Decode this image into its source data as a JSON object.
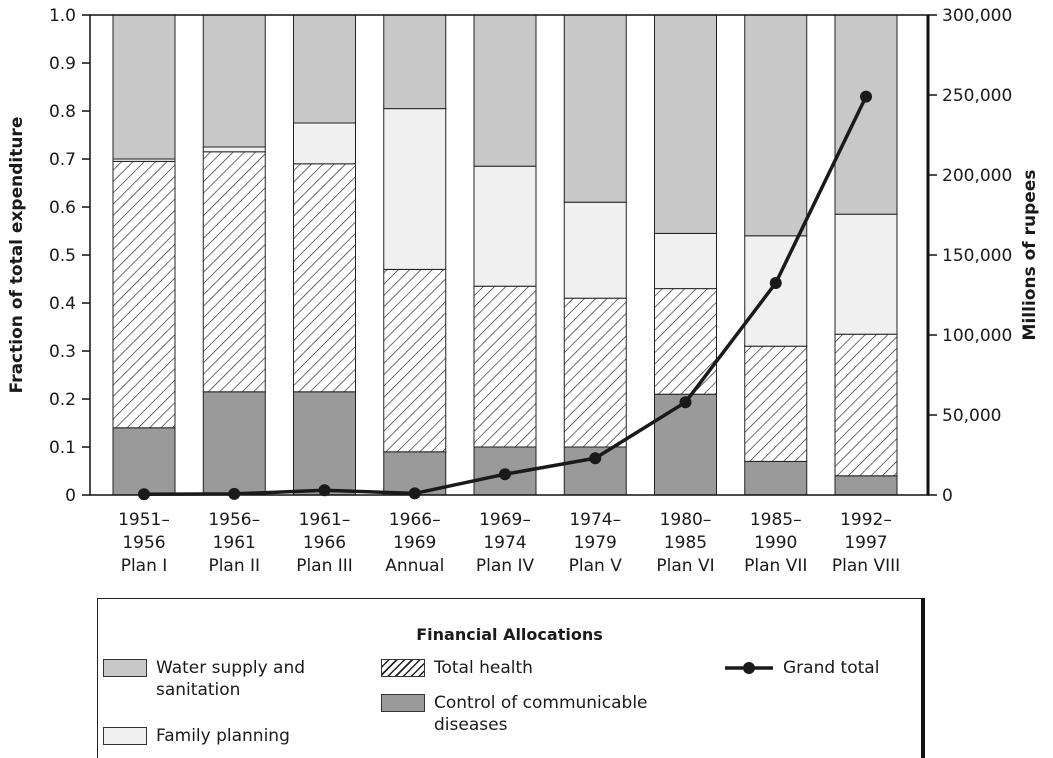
{
  "chart_data": {
    "type": "stacked-bar-line",
    "ylabel": "Fraction of total expenditure",
    "y2label": "Millions of rupees",
    "categories": [
      [
        "1951–",
        "1956",
        "Plan I"
      ],
      [
        "1956–",
        "1961",
        "Plan II"
      ],
      [
        "1961–",
        "1966",
        "Plan III"
      ],
      [
        "1966–",
        "1969",
        "Annual"
      ],
      [
        "1969–",
        "1974",
        "Plan IV"
      ],
      [
        "1974–",
        "1979",
        "Plan V"
      ],
      [
        "1980–",
        "1985",
        "Plan VI"
      ],
      [
        "1985–",
        "1990",
        "Plan VII"
      ],
      [
        "1992–",
        "1997",
        "Plan VIII"
      ]
    ],
    "ylim": [
      0,
      1
    ],
    "yticks": [
      0,
      0.1,
      0.2,
      0.3,
      0.4,
      0.5,
      0.6,
      0.7,
      0.8,
      0.9,
      {
        "value": 1,
        "label": "1.0"
      }
    ],
    "y2lim": [
      0,
      300000
    ],
    "y2ticks": [
      0,
      {
        "value": 50000,
        "label": "50,000"
      },
      {
        "value": 100000,
        "label": "100,000"
      },
      {
        "value": 150000,
        "label": "150,000"
      },
      {
        "value": 200000,
        "label": "200,000"
      },
      {
        "value": 250000,
        "label": "250,000"
      },
      {
        "value": 300000,
        "label": "300,000"
      }
    ],
    "legend_title": "Financial Allocations",
    "series": [
      {
        "name": "Control of communicable diseases",
        "color": "#9a9a9a",
        "values": [
          0.14,
          0.215,
          0.215,
          0.09,
          0.1,
          0.1,
          0.21,
          0.07,
          0.04
        ]
      },
      {
        "name": "Total health",
        "color": "#ffffff",
        "hatch": true,
        "values": [
          0.555,
          0.5,
          0.475,
          0.38,
          0.335,
          0.31,
          0.22,
          0.24,
          0.295
        ]
      },
      {
        "name": "Family planning",
        "color": "#f0f0f0",
        "values": [
          0.005,
          0.01,
          0.085,
          0.335,
          0.25,
          0.2,
          0.115,
          0.23,
          0.25
        ]
      },
      {
        "name": "Water supply and sanitation",
        "color": "#c8c8c8",
        "values": [
          0.3,
          0.275,
          0.225,
          0.195,
          0.315,
          0.39,
          0.455,
          0.46,
          0.415
        ]
      },
      {
        "name": "Grand total",
        "color": "#1a1a1a",
        "type": "line",
        "axis": "y2",
        "values": [
          500,
          700,
          3000,
          1000,
          13000,
          23000,
          58000,
          132500,
          249000
        ]
      }
    ]
  }
}
